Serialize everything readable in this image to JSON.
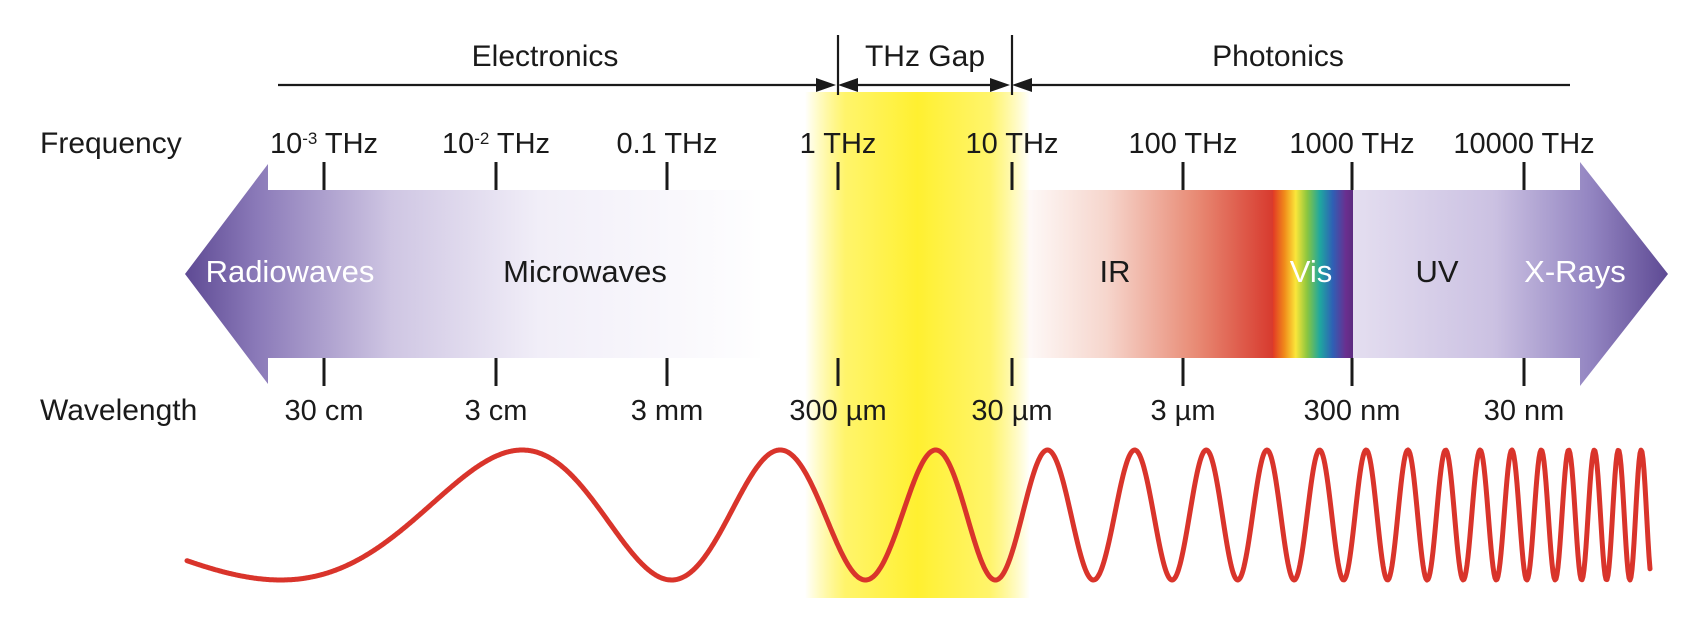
{
  "regions": {
    "electronics": "Electronics",
    "thz_gap": "THz Gap",
    "photonics": "Photonics"
  },
  "row_labels": {
    "frequency": "Frequency",
    "wavelength": "Wavelength"
  },
  "frequency_ticks": [
    {
      "base": "10",
      "exp": "-3",
      "unit": " THz"
    },
    {
      "base": "10",
      "exp": "-2",
      "unit": " THz"
    },
    {
      "base": "0.1 THz",
      "exp": "",
      "unit": ""
    },
    {
      "base": "1 THz",
      "exp": "",
      "unit": ""
    },
    {
      "base": "10 THz",
      "exp": "",
      "unit": ""
    },
    {
      "base": "100 THz",
      "exp": "",
      "unit": ""
    },
    {
      "base": "1000 THz",
      "exp": "",
      "unit": ""
    },
    {
      "base": "10000 THz",
      "exp": "",
      "unit": ""
    }
  ],
  "wavelength_ticks": [
    "30 cm",
    "3 cm",
    "3 mm",
    "300 µm",
    "30 µm",
    "3 µm",
    "300 nm",
    "30 nm"
  ],
  "bands": {
    "radiowaves": "Radiowaves",
    "microwaves": "Microwaves",
    "ir": "IR",
    "vis": "Vis",
    "uv": "UV",
    "xrays": "X-Rays"
  },
  "colors": {
    "arrow_violet": "#5e4a94",
    "gap_yellow": "#fff030",
    "ir_red": "#d7382c",
    "wave_red": "#d9342b",
    "text": "#1a1a1a"
  }
}
